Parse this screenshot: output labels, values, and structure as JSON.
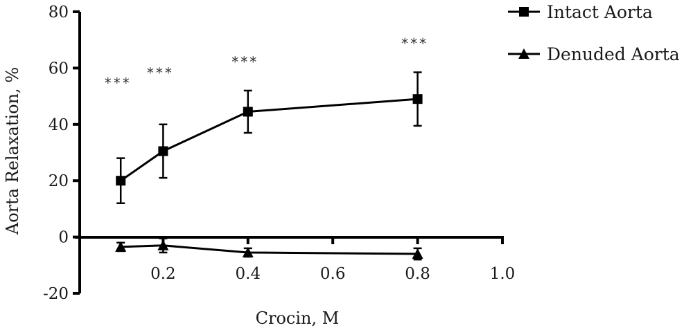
{
  "chart_data": {
    "type": "line",
    "xlabel": "Crocin, M",
    "ylabel": "Aorta Relaxation, %",
    "xlim": [
      0.0,
      1.0
    ],
    "ylim": [
      -20,
      80
    ],
    "x_ticks": [
      0.2,
      0.4,
      0.6,
      0.8,
      1.0
    ],
    "x_tick_labels": [
      "0.2",
      "0.4",
      "0.6",
      "0.8",
      "1.0"
    ],
    "y_ticks": [
      -20,
      0,
      20,
      40,
      60,
      80
    ],
    "y_tick_labels": [
      "-20",
      "0",
      "20",
      "40",
      "60",
      "80"
    ],
    "grid": false,
    "legend_position": "top-right",
    "colors": {
      "line": "#000000",
      "text": "#1a1a1a"
    },
    "series": [
      {
        "name": "Intact Aorta",
        "marker": "square",
        "x": [
          0.1,
          0.2,
          0.4,
          0.8
        ],
        "y": [
          20,
          30.5,
          44.5,
          49
        ],
        "error": [
          8,
          9.5,
          7.5,
          9.5
        ]
      },
      {
        "name": "Denuded Aorta",
        "marker": "triangle",
        "x": [
          0.1,
          0.2,
          0.4,
          0.8
        ],
        "y": [
          -3.5,
          -3,
          -5.5,
          -6
        ],
        "error": [
          1.5,
          2.5,
          1.5,
          2
        ]
      }
    ],
    "annotations": [
      {
        "text": "***",
        "x": 0.1,
        "y": 53
      },
      {
        "text": "***",
        "x": 0.2,
        "y": 56.5
      },
      {
        "text": "***",
        "x": 0.4,
        "y": 60.5
      },
      {
        "text": "***",
        "x": 0.8,
        "y": 67
      }
    ]
  }
}
